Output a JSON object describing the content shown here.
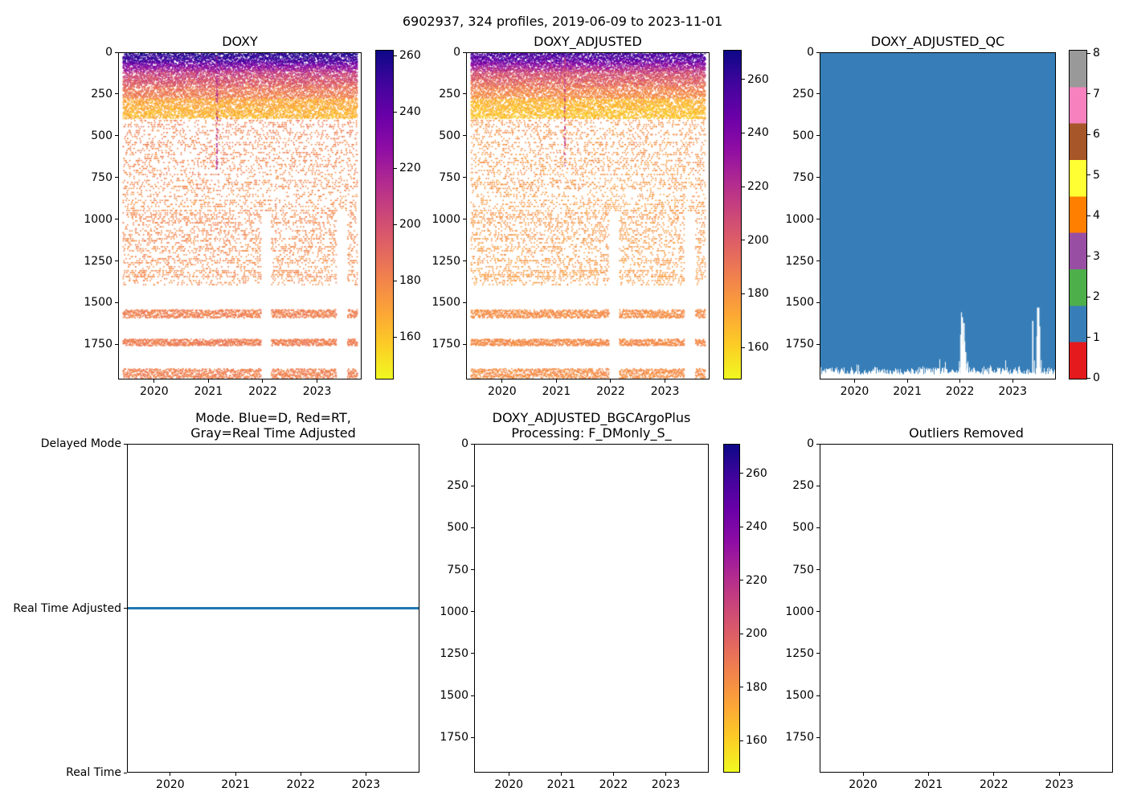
{
  "figure_title": "6902937, 324 profiles, 2019-06-09 to 2023-11-01",
  "float_id": "6902937",
  "profile_count": "324 profiles",
  "date_range": "2019-06-09 to 2023-11-01",
  "colors": {
    "mode_line_blue": "#1f77b4",
    "qc_fill_blue": "#377eb8",
    "plasma_r_stops": [
      "#0d0887",
      "#41049d",
      "#6a00a8",
      "#8f0da4",
      "#b12a90",
      "#cc4778",
      "#e16462",
      "#f2844b",
      "#fca636",
      "#fcce25",
      "#f0f921"
    ],
    "qc_palette": [
      "#e41a1c",
      "#377eb8",
      "#4daf4a",
      "#984ea3",
      "#ff7f00",
      "#ffff33",
      "#a65628",
      "#f781bf",
      "#999999"
    ]
  },
  "chart_data": [
    {
      "id": "doxy",
      "type": "scatter",
      "title_lines": [
        "DOXY"
      ],
      "x_ticks": [
        "2020",
        "2021",
        "2022",
        "2023"
      ],
      "y_tick_labels": [
        "0",
        "250",
        "500",
        "750",
        "1000",
        "1250",
        "1500",
        "1750"
      ],
      "y_tick_values": [
        0,
        250,
        500,
        750,
        1000,
        1250,
        1500,
        1750
      ],
      "y_max": 1960,
      "colorbar": {
        "colormap": "plasma_r",
        "vmin": 145,
        "vmax": 262,
        "tick_values": [
          260,
          240,
          220,
          200,
          180,
          160
        ],
        "tick_labels": [
          "260",
          "240",
          "220",
          "200",
          "180",
          "160"
        ]
      },
      "profiles": 324,
      "seed": 42,
      "layers": [
        {
          "depth": [
            0,
            55
          ],
          "n": 6,
          "v": [
            258,
            246
          ],
          "spread": 9
        },
        {
          "depth": [
            55,
            115
          ],
          "n": 7,
          "v": [
            242,
            212
          ],
          "spread": 13
        },
        {
          "depth": [
            115,
            205
          ],
          "n": 9,
          "v": [
            208,
            191
          ],
          "spread": 11
        },
        {
          "depth": [
            205,
            275
          ],
          "n": 6,
          "v": [
            188,
            180
          ],
          "spread": 6
        },
        {
          "depth": [
            275,
            395
          ],
          "n": 10,
          "v": [
            170,
            163
          ],
          "spread": 7
        },
        {
          "depth": [
            395,
            950
          ],
          "n": 12,
          "v": [
            182,
            178
          ],
          "spread": 5,
          "quant": 12,
          "rowvary": 1
        },
        {
          "depth": [
            950,
            1400
          ],
          "n": 14,
          "v": [
            180,
            178
          ],
          "spread": 4,
          "quant": 12,
          "rowvary": 1,
          "gaps": [
            [
              0.588,
              0.63
            ],
            [
              0.9,
              0.945
            ]
          ]
        },
        {
          "depth": [
            1545,
            1595
          ],
          "n": 4,
          "v": [
            182,
            182
          ],
          "spread": 3,
          "gaps": [
            [
              0.588,
              0.63
            ],
            [
              0.9,
              0.945
            ]
          ]
        },
        {
          "depth": [
            1722,
            1762
          ],
          "n": 4,
          "v": [
            183,
            183
          ],
          "spread": 3,
          "gaps": [
            [
              0.588,
              0.63
            ],
            [
              0.9,
              0.945
            ]
          ]
        },
        {
          "depth": [
            1900,
            1958
          ],
          "n": 4,
          "v": [
            182,
            182
          ],
          "spread": 3,
          "gaps": [
            [
              0.588,
              0.63
            ],
            [
              0.9,
              0.945
            ]
          ]
        }
      ],
      "streak": {
        "x_frac": 0.405,
        "depth": [
          20,
          700
        ],
        "v": 216,
        "spread": 7,
        "n": 70
      }
    },
    {
      "id": "doxy_adjusted",
      "type": "scatter",
      "title_lines": [
        "DOXY_ADJUSTED"
      ],
      "x_ticks": [
        "2020",
        "2021",
        "2022",
        "2023"
      ],
      "y_tick_labels": [
        "0",
        "250",
        "500",
        "750",
        "1000",
        "1250",
        "1500",
        "1750"
      ],
      "y_tick_values": [
        0,
        250,
        500,
        750,
        1000,
        1250,
        1500,
        1750
      ],
      "y_max": 1960,
      "colorbar": {
        "colormap": "plasma_r",
        "vmin": 148,
        "vmax": 271,
        "tick_values": [
          260,
          240,
          220,
          200,
          180,
          160
        ],
        "tick_labels": [
          "260",
          "240",
          "220",
          "200",
          "180",
          "160"
        ]
      },
      "profiles": 324,
      "seed": 1337,
      "layers": [
        {
          "depth": [
            0,
            55
          ],
          "n": 6,
          "v": [
            258,
            246
          ],
          "spread": 10
        },
        {
          "depth": [
            55,
            115
          ],
          "n": 7,
          "v": [
            242,
            212
          ],
          "spread": 13
        },
        {
          "depth": [
            115,
            205
          ],
          "n": 9,
          "v": [
            208,
            191
          ],
          "spread": 11
        },
        {
          "depth": [
            205,
            275
          ],
          "n": 6,
          "v": [
            188,
            180
          ],
          "spread": 6
        },
        {
          "depth": [
            275,
            395
          ],
          "n": 10,
          "v": [
            170,
            163
          ],
          "spread": 7
        },
        {
          "depth": [
            395,
            950
          ],
          "n": 12,
          "v": [
            182,
            178
          ],
          "spread": 5,
          "quant": 12,
          "rowvary": 1
        },
        {
          "depth": [
            950,
            1400
          ],
          "n": 14,
          "v": [
            180,
            178
          ],
          "spread": 4,
          "quant": 12,
          "rowvary": 1,
          "gaps": [
            [
              0.588,
              0.63
            ],
            [
              0.9,
              0.945
            ]
          ]
        },
        {
          "depth": [
            1545,
            1595
          ],
          "n": 4,
          "v": [
            182,
            182
          ],
          "spread": 3,
          "gaps": [
            [
              0.588,
              0.63
            ],
            [
              0.9,
              0.945
            ]
          ]
        },
        {
          "depth": [
            1722,
            1762
          ],
          "n": 4,
          "v": [
            183,
            183
          ],
          "spread": 3,
          "gaps": [
            [
              0.588,
              0.63
            ],
            [
              0.9,
              0.945
            ]
          ]
        },
        {
          "depth": [
            1900,
            1958
          ],
          "n": 4,
          "v": [
            182,
            182
          ],
          "spread": 3,
          "gaps": [
            [
              0.588,
              0.63
            ],
            [
              0.9,
              0.945
            ]
          ]
        }
      ],
      "streak": {
        "x_frac": 0.405,
        "depth": [
          20,
          700
        ],
        "v": 214,
        "spread": 7,
        "n": 70
      }
    },
    {
      "id": "doxy_adjusted_qc",
      "type": "heatmap",
      "title_lines": [
        "DOXY_ADJUSTED_QC"
      ],
      "x_ticks": [
        "2020",
        "2021",
        "2022",
        "2023"
      ],
      "y_tick_labels": [
        "0",
        "250",
        "500",
        "750",
        "1000",
        "1250",
        "1500",
        "1750"
      ],
      "y_tick_values": [
        0,
        250,
        500,
        750,
        1000,
        1250,
        1500,
        1750
      ],
      "y_max": 1960,
      "dominant_qc_value": 1,
      "colorbar": {
        "colormap": "Set1_discrete",
        "tick_labels": [
          "0",
          "1",
          "2",
          "3",
          "4",
          "5",
          "6",
          "7",
          "8"
        ]
      },
      "seed": 7,
      "fill_bottom_depth": 1912,
      "fill_bottom_jitter": 22,
      "missing_spikes": [
        {
          "x_frac": 0.592,
          "w": 1,
          "top_depth": 1855
        },
        {
          "x_frac": 0.597,
          "w": 1,
          "top_depth": 1695
        },
        {
          "x_frac": 0.601,
          "w": 1.2,
          "top_depth": 1560
        },
        {
          "x_frac": 0.605,
          "w": 1.5,
          "top_depth": 1590
        },
        {
          "x_frac": 0.608,
          "w": 1,
          "top_depth": 1755
        },
        {
          "x_frac": 0.611,
          "w": 2,
          "top_depth": 1625
        },
        {
          "x_frac": 0.615,
          "w": 1.2,
          "top_depth": 1735
        },
        {
          "x_frac": 0.619,
          "w": 1.5,
          "top_depth": 1800
        },
        {
          "x_frac": 0.624,
          "w": 1,
          "top_depth": 1868
        },
        {
          "x_frac": 0.905,
          "w": 1.6,
          "top_depth": 1612
        },
        {
          "x_frac": 0.912,
          "w": 1,
          "top_depth": 1850
        },
        {
          "x_frac": 0.922,
          "w": 1,
          "top_depth": 1705
        },
        {
          "x_frac": 0.928,
          "w": 3,
          "top_depth": 1532
        },
        {
          "x_frac": 0.934,
          "w": 1.6,
          "top_depth": 1645
        },
        {
          "x_frac": 0.941,
          "w": 1,
          "top_depth": 1848
        }
      ]
    },
    {
      "id": "mode",
      "type": "line",
      "title_lines": [
        "Mode. Blue=D, Red=RT,",
        "Gray=Real Time Adjusted"
      ],
      "x_ticks": [
        "2020",
        "2021",
        "2022",
        "2023"
      ],
      "y_tick_labels": [
        "Delayed Mode",
        "Real Time Adjusted",
        "Real Time"
      ],
      "line_at_label": "Real Time Adjusted",
      "line_level_frac": 0.5
    },
    {
      "id": "bgc",
      "type": "scatter",
      "title_lines": [
        "DOXY_ADJUSTED_BGCArgoPlus",
        "Processing: F_DMonly_S_"
      ],
      "x_ticks": [
        "2020",
        "2021",
        "2022",
        "2023"
      ],
      "y_tick_labels": [
        "0",
        "250",
        "500",
        "750",
        "1000",
        "1250",
        "1500",
        "1750"
      ],
      "y_tick_values": [
        0,
        250,
        500,
        750,
        1000,
        1250,
        1500,
        1750
      ],
      "y_max": 1960,
      "colorbar": {
        "colormap": "plasma_r",
        "vmin": 148,
        "vmax": 271,
        "tick_values": [
          260,
          240,
          220,
          200,
          180,
          160
        ],
        "tick_labels": [
          "260",
          "240",
          "220",
          "200",
          "180",
          "160"
        ]
      },
      "layers": []
    },
    {
      "id": "outliers",
      "type": "scatter",
      "title_lines": [
        "Outliers Removed"
      ],
      "x_ticks": [
        "2020",
        "2021",
        "2022",
        "2023"
      ],
      "y_tick_labels": [
        "0",
        "250",
        "500",
        "750",
        "1000",
        "1250",
        "1500",
        "1750"
      ],
      "y_tick_values": [
        0,
        250,
        500,
        750,
        1000,
        1250,
        1500,
        1750
      ],
      "y_max": 1960,
      "layers": []
    }
  ]
}
